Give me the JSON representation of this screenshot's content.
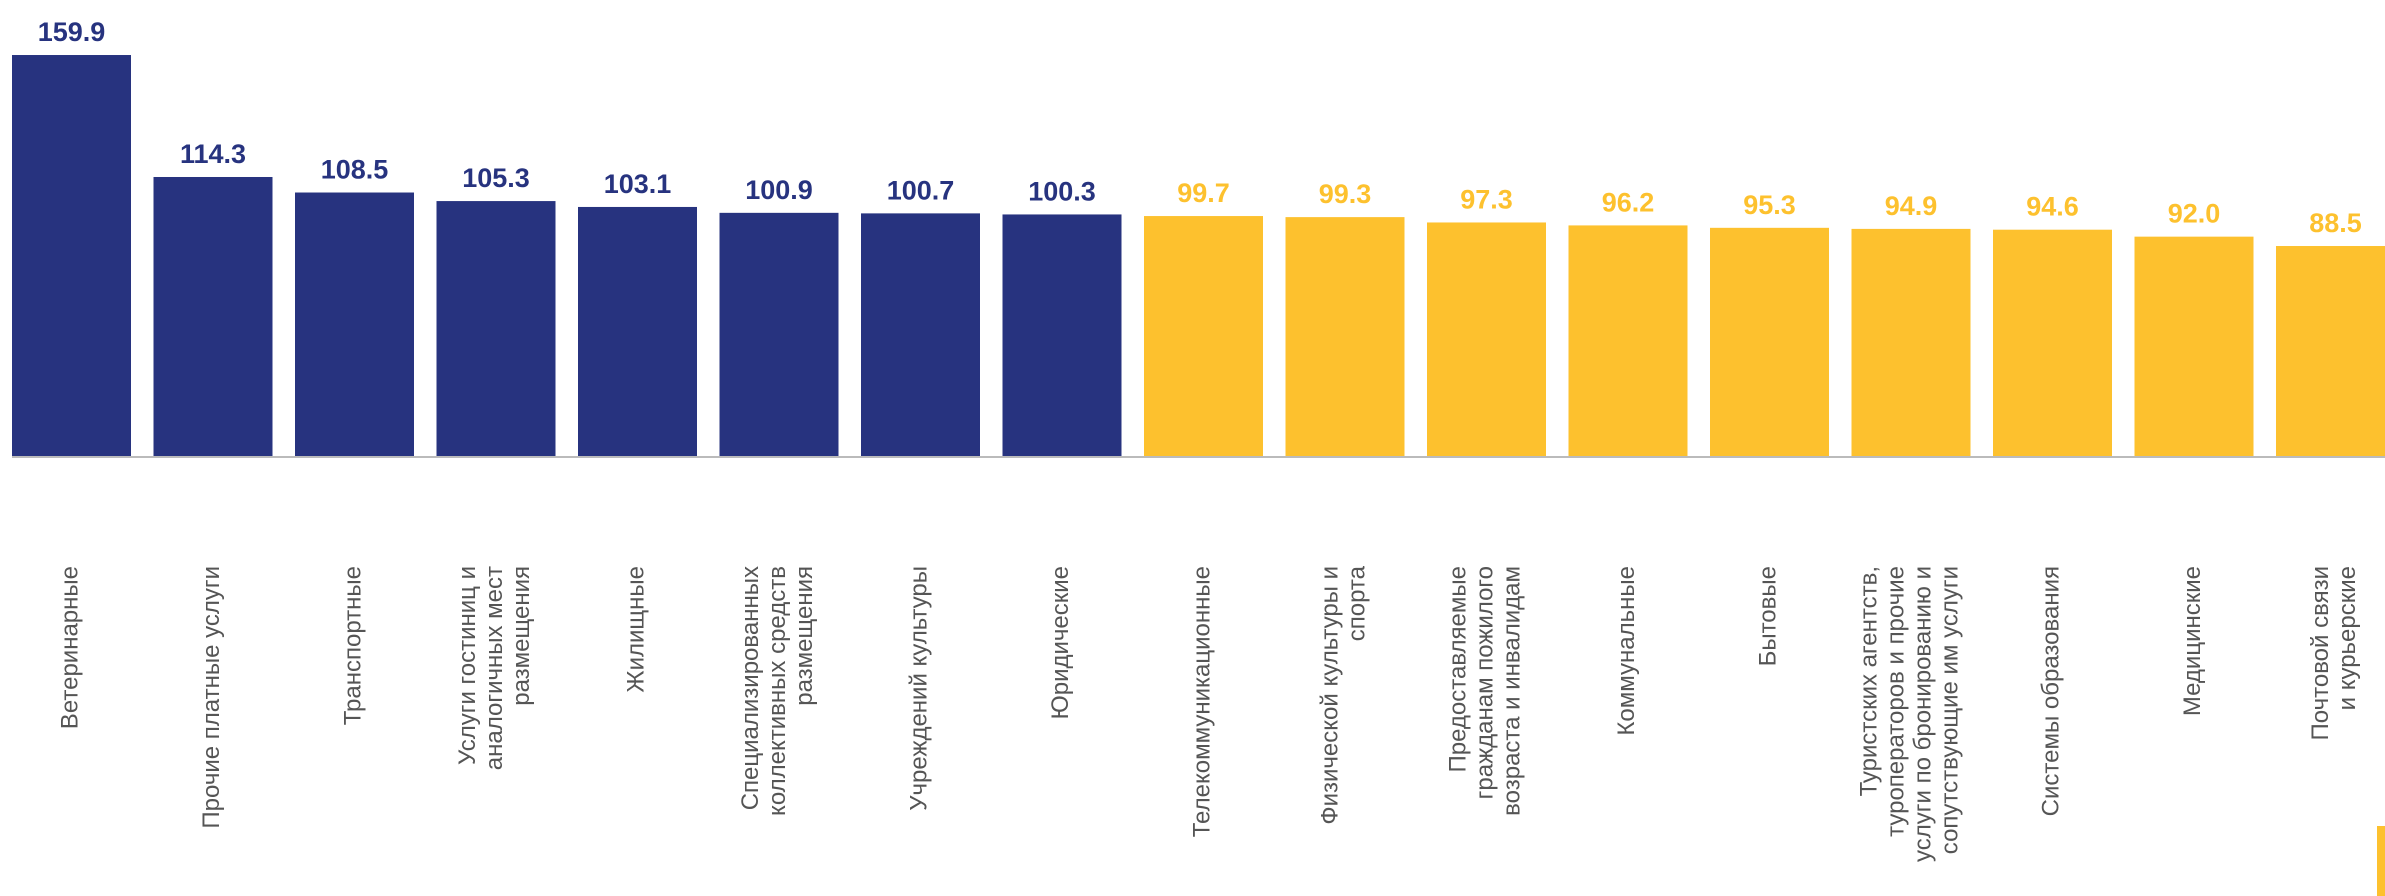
{
  "chart_data": {
    "type": "bar",
    "categories": [
      "Ветеринарные",
      "Прочие платные услуги",
      "Транспортные",
      "Услуги гостиниц и\nаналогичных мест\nразмещения",
      "Жилищные",
      "Специализированных\nколлективных средств\nразмещения",
      "Учреждений  культуры",
      "Юридические",
      "Телекоммуникационные",
      "Физической культуры и\nспорта",
      "Предоставляемые\nгражданам пожилого\nвозраста и инвалидам",
      "Коммунальные",
      "Бытовые",
      "Туристских агентств,\nтуроператоров и прочие\nуслуги по бронированию и\nсопутствующие им услуги",
      "Системы образования",
      "Медицинские",
      "Почтовой связи\nи курьерские"
    ],
    "values": [
      159.9,
      114.3,
      108.5,
      105.3,
      103.1,
      100.9,
      100.7,
      100.3,
      99.7,
      99.3,
      97.3,
      96.2,
      95.3,
      94.9,
      94.6,
      92.0,
      88.5
    ],
    "value_labels": [
      "159.9",
      "114.3",
      "108.5",
      "105.3",
      "103.1",
      "100.9",
      "100.7",
      "100.3",
      "99.7",
      "99.3",
      "97.3",
      "96.2",
      "95.3",
      "94.9",
      "94.6",
      "92.0",
      "88.5"
    ],
    "colors": [
      "#27337f",
      "#27337f",
      "#27337f",
      "#27337f",
      "#27337f",
      "#27337f",
      "#27337f",
      "#27337f",
      "#fdc12e",
      "#fdc12e",
      "#fdc12e",
      "#fdc12e",
      "#fdc12e",
      "#fdc12e",
      "#fdc12e",
      "#fdc12e",
      "#fdc12e"
    ],
    "ylim": [
      10,
      170
    ]
  }
}
